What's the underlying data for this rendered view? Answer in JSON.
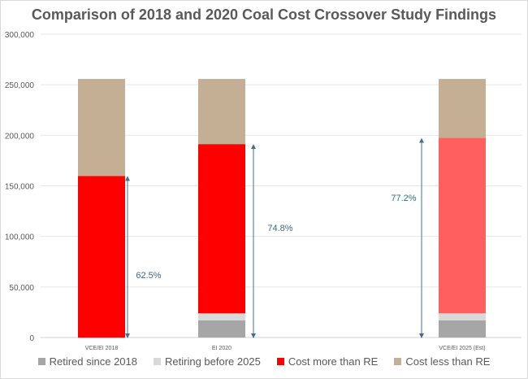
{
  "chart_data": {
    "type": "bar",
    "stacked": true,
    "title": "Comparison of 2018 and 2020 Coal Cost Crossover Study Findings",
    "categories": [
      "VCE/EI 2018",
      "EI 2020",
      "",
      "VCE/EI 2025 (Est)"
    ],
    "ylim": [
      0,
      300000
    ],
    "yticks": [
      "0",
      "50,000",
      "100,000",
      "150,000",
      "200,000",
      "250,000",
      "300,000"
    ],
    "grid": true,
    "legend_position": "bottom",
    "series": [
      {
        "name": "Retired since 2018",
        "color": "#a6a6a6",
        "values": [
          0,
          17000,
          null,
          17000
        ]
      },
      {
        "name": "Retiring before 2025",
        "color": "#d9d9d9",
        "values": [
          0,
          7000,
          null,
          7000
        ]
      },
      {
        "name": "Cost more than RE",
        "color": "#ff0000",
        "values": [
          159800,
          167300,
          null,
          173400
        ],
        "alt_colors": [
          null,
          null,
          null,
          "#ff5f5f"
        ]
      },
      {
        "name": "Cost less than RE",
        "color": "#c4ae94",
        "values": [
          95900,
          64400,
          null,
          58300
        ]
      }
    ],
    "annotations": [
      {
        "text": "62.5%",
        "category": "VCE/EI 2018",
        "arrow_to": 159800
      },
      {
        "text": "74.8%",
        "category": "EI 2020",
        "arrow_to": 191300
      },
      {
        "text": "77.2%",
        "category": "VCE/EI 2025 (Est)",
        "arrow_to": 197400
      }
    ]
  }
}
